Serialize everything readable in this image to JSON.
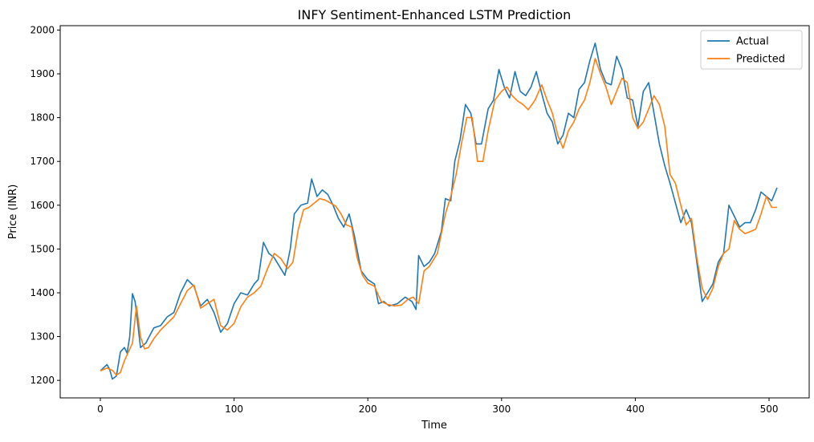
{
  "chart_data": {
    "type": "line",
    "title": "INFY Sentiment-Enhanced LSTM Prediction",
    "xlabel": "Time",
    "ylabel": "Price (INR)",
    "xlim": [
      -30,
      530
    ],
    "ylim": [
      1160,
      2010
    ],
    "xticks": [
      0,
      100,
      200,
      300,
      400,
      500
    ],
    "yticks": [
      1200,
      1300,
      1400,
      1500,
      1600,
      1700,
      1800,
      1900,
      2000
    ],
    "grid": false,
    "legend_position": "top-right",
    "series": [
      {
        "name": "Actual",
        "color": "#1f77b4",
        "points": [
          [
            0,
            1222
          ],
          [
            5,
            1236
          ],
          [
            7,
            1225
          ],
          [
            9,
            1203
          ],
          [
            12,
            1210
          ],
          [
            15,
            1265
          ],
          [
            18,
            1275
          ],
          [
            20,
            1262
          ],
          [
            22,
            1300
          ],
          [
            24,
            1398
          ],
          [
            26,
            1380
          ],
          [
            28,
            1330
          ],
          [
            30,
            1275
          ],
          [
            34,
            1285
          ],
          [
            40,
            1320
          ],
          [
            45,
            1325
          ],
          [
            50,
            1345
          ],
          [
            55,
            1355
          ],
          [
            60,
            1400
          ],
          [
            65,
            1430
          ],
          [
            70,
            1415
          ],
          [
            75,
            1370
          ],
          [
            80,
            1385
          ],
          [
            85,
            1355
          ],
          [
            90,
            1310
          ],
          [
            95,
            1330
          ],
          [
            100,
            1375
          ],
          [
            105,
            1400
          ],
          [
            110,
            1395
          ],
          [
            115,
            1420
          ],
          [
            118,
            1430
          ],
          [
            122,
            1515
          ],
          [
            126,
            1490
          ],
          [
            130,
            1480
          ],
          [
            134,
            1460
          ],
          [
            138,
            1440
          ],
          [
            142,
            1500
          ],
          [
            145,
            1580
          ],
          [
            150,
            1600
          ],
          [
            155,
            1605
          ],
          [
            158,
            1660
          ],
          [
            162,
            1620
          ],
          [
            166,
            1635
          ],
          [
            170,
            1625
          ],
          [
            174,
            1600
          ],
          [
            178,
            1570
          ],
          [
            182,
            1550
          ],
          [
            186,
            1580
          ],
          [
            190,
            1530
          ],
          [
            195,
            1450
          ],
          [
            200,
            1430
          ],
          [
            205,
            1420
          ],
          [
            208,
            1375
          ],
          [
            212,
            1380
          ],
          [
            216,
            1370
          ],
          [
            222,
            1375
          ],
          [
            228,
            1390
          ],
          [
            233,
            1380
          ],
          [
            236,
            1362
          ],
          [
            238,
            1485
          ],
          [
            242,
            1460
          ],
          [
            246,
            1470
          ],
          [
            250,
            1490
          ],
          [
            255,
            1540
          ],
          [
            258,
            1615
          ],
          [
            262,
            1610
          ],
          [
            265,
            1700
          ],
          [
            269,
            1750
          ],
          [
            273,
            1830
          ],
          [
            277,
            1810
          ],
          [
            281,
            1740
          ],
          [
            285,
            1740
          ],
          [
            290,
            1820
          ],
          [
            294,
            1840
          ],
          [
            298,
            1910
          ],
          [
            302,
            1870
          ],
          [
            306,
            1845
          ],
          [
            310,
            1905
          ],
          [
            314,
            1860
          ],
          [
            318,
            1850
          ],
          [
            322,
            1870
          ],
          [
            326,
            1905
          ],
          [
            330,
            1855
          ],
          [
            334,
            1810
          ],
          [
            338,
            1790
          ],
          [
            342,
            1740
          ],
          [
            346,
            1760
          ],
          [
            350,
            1810
          ],
          [
            354,
            1800
          ],
          [
            358,
            1865
          ],
          [
            362,
            1880
          ],
          [
            366,
            1930
          ],
          [
            370,
            1970
          ],
          [
            374,
            1910
          ],
          [
            378,
            1880
          ],
          [
            382,
            1875
          ],
          [
            386,
            1940
          ],
          [
            390,
            1910
          ],
          [
            394,
            1845
          ],
          [
            398,
            1840
          ],
          [
            402,
            1780
          ],
          [
            406,
            1860
          ],
          [
            410,
            1880
          ],
          [
            414,
            1810
          ],
          [
            418,
            1740
          ],
          [
            422,
            1690
          ],
          [
            426,
            1650
          ],
          [
            430,
            1605
          ],
          [
            434,
            1560
          ],
          [
            438,
            1590
          ],
          [
            442,
            1560
          ],
          [
            446,
            1470
          ],
          [
            450,
            1380
          ],
          [
            454,
            1400
          ],
          [
            458,
            1420
          ],
          [
            462,
            1470
          ],
          [
            466,
            1490
          ],
          [
            470,
            1600
          ],
          [
            474,
            1575
          ],
          [
            478,
            1550
          ],
          [
            482,
            1560
          ],
          [
            486,
            1560
          ],
          [
            490,
            1590
          ],
          [
            494,
            1630
          ],
          [
            498,
            1620
          ],
          [
            502,
            1610
          ],
          [
            506,
            1640
          ]
        ]
      },
      {
        "name": "Predicted",
        "color": "#ff7f0e",
        "points": [
          [
            0,
            1222
          ],
          [
            5,
            1228
          ],
          [
            9,
            1223
          ],
          [
            12,
            1212
          ],
          [
            15,
            1218
          ],
          [
            18,
            1245
          ],
          [
            21,
            1265
          ],
          [
            24,
            1285
          ],
          [
            27,
            1370
          ],
          [
            30,
            1300
          ],
          [
            33,
            1272
          ],
          [
            36,
            1275
          ],
          [
            40,
            1295
          ],
          [
            45,
            1315
          ],
          [
            50,
            1330
          ],
          [
            55,
            1345
          ],
          [
            60,
            1375
          ],
          [
            65,
            1405
          ],
          [
            70,
            1418
          ],
          [
            75,
            1365
          ],
          [
            80,
            1375
          ],
          [
            85,
            1385
          ],
          [
            90,
            1325
          ],
          [
            95,
            1315
          ],
          [
            100,
            1330
          ],
          [
            105,
            1368
          ],
          [
            110,
            1390
          ],
          [
            115,
            1400
          ],
          [
            120,
            1415
          ],
          [
            125,
            1455
          ],
          [
            130,
            1490
          ],
          [
            135,
            1478
          ],
          [
            140,
            1455
          ],
          [
            144,
            1470
          ],
          [
            148,
            1545
          ],
          [
            152,
            1590
          ],
          [
            156,
            1595
          ],
          [
            160,
            1605
          ],
          [
            164,
            1615
          ],
          [
            168,
            1612
          ],
          [
            172,
            1605
          ],
          [
            176,
            1598
          ],
          [
            180,
            1580
          ],
          [
            184,
            1555
          ],
          [
            188,
            1550
          ],
          [
            192,
            1480
          ],
          [
            196,
            1440
          ],
          [
            200,
            1422
          ],
          [
            205,
            1415
          ],
          [
            210,
            1380
          ],
          [
            215,
            1373
          ],
          [
            220,
            1370
          ],
          [
            225,
            1372
          ],
          [
            230,
            1385
          ],
          [
            234,
            1390
          ],
          [
            238,
            1375
          ],
          [
            242,
            1450
          ],
          [
            246,
            1460
          ],
          [
            252,
            1490
          ],
          [
            258,
            1580
          ],
          [
            262,
            1620
          ],
          [
            266,
            1670
          ],
          [
            270,
            1740
          ],
          [
            274,
            1800
          ],
          [
            278,
            1800
          ],
          [
            282,
            1700
          ],
          [
            286,
            1700
          ],
          [
            290,
            1770
          ],
          [
            295,
            1840
          ],
          [
            300,
            1860
          ],
          [
            304,
            1870
          ],
          [
            308,
            1850
          ],
          [
            312,
            1838
          ],
          [
            316,
            1830
          ],
          [
            320,
            1818
          ],
          [
            325,
            1840
          ],
          [
            330,
            1875
          ],
          [
            334,
            1840
          ],
          [
            338,
            1810
          ],
          [
            342,
            1760
          ],
          [
            346,
            1730
          ],
          [
            350,
            1770
          ],
          [
            354,
            1790
          ],
          [
            358,
            1820
          ],
          [
            362,
            1840
          ],
          [
            366,
            1880
          ],
          [
            370,
            1935
          ],
          [
            374,
            1900
          ],
          [
            378,
            1870
          ],
          [
            382,
            1830
          ],
          [
            386,
            1860
          ],
          [
            390,
            1890
          ],
          [
            394,
            1880
          ],
          [
            398,
            1800
          ],
          [
            402,
            1775
          ],
          [
            406,
            1790
          ],
          [
            410,
            1820
          ],
          [
            414,
            1850
          ],
          [
            418,
            1830
          ],
          [
            422,
            1780
          ],
          [
            426,
            1670
          ],
          [
            430,
            1650
          ],
          [
            434,
            1600
          ],
          [
            438,
            1555
          ],
          [
            442,
            1570
          ],
          [
            446,
            1480
          ],
          [
            450,
            1410
          ],
          [
            454,
            1385
          ],
          [
            458,
            1410
          ],
          [
            462,
            1460
          ],
          [
            466,
            1490
          ],
          [
            470,
            1500
          ],
          [
            474,
            1565
          ],
          [
            478,
            1545
          ],
          [
            482,
            1535
          ],
          [
            486,
            1540
          ],
          [
            490,
            1545
          ],
          [
            494,
            1580
          ],
          [
            498,
            1620
          ],
          [
            502,
            1595
          ],
          [
            506,
            1595
          ]
        ]
      }
    ]
  }
}
